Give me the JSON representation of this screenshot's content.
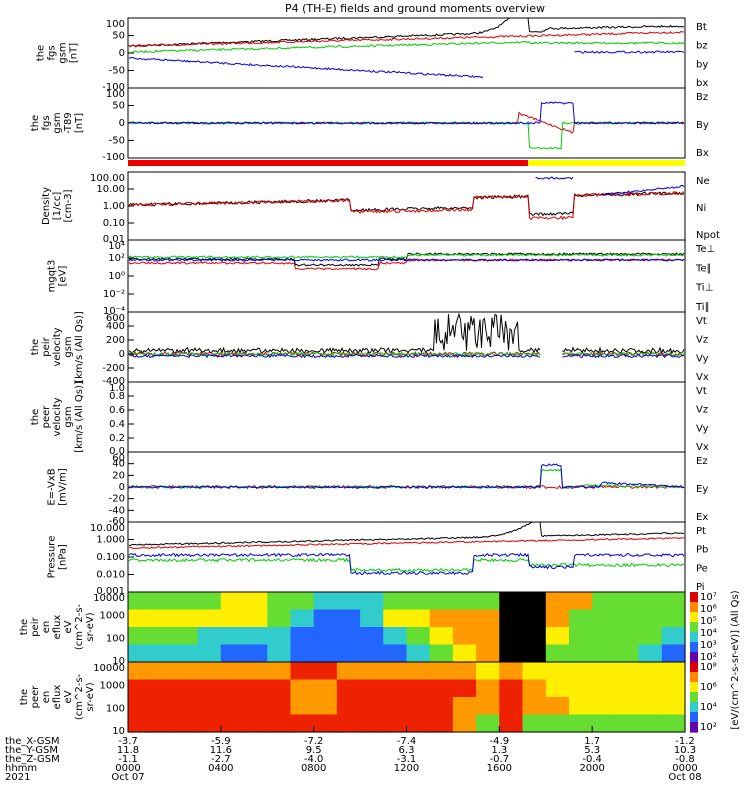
{
  "title": "P4 (TH-E) fields and ground moments overview",
  "colors": {
    "black": "#000000",
    "red": "#dd0000",
    "green": "#00cc00",
    "blue": "#0000dd",
    "yellow": "#ffff00"
  },
  "chart_data": [
    {
      "type": "line",
      "id": "fgs",
      "ylabel": [
        "the",
        "fgs",
        "gsm",
        "[nT]"
      ],
      "ylim": [
        -100,
        100
      ],
      "yticks": [
        "100",
        "50",
        "0",
        "-50",
        "-100"
      ],
      "series": [
        {
          "name": "Bt",
          "color": "black"
        },
        {
          "name": "bz",
          "color": "red"
        },
        {
          "name": "by",
          "color": "green"
        },
        {
          "name": "bx",
          "color": "blue"
        }
      ]
    },
    {
      "type": "line",
      "id": "fgs_dsl",
      "ylabel": [
        "the",
        "fgs",
        "gsm",
        "-T89",
        "[nT]"
      ],
      "ylim": [
        -125,
        125
      ],
      "yticks": [
        "100",
        "50",
        "0",
        "-50",
        "-100"
      ],
      "series": [
        {
          "name": "Bz",
          "color": "red"
        },
        {
          "name": "By",
          "color": "green"
        },
        {
          "name": "Bx",
          "color": "blue"
        }
      ]
    },
    {
      "type": "line",
      "id": "density",
      "ylabel": [
        "Density",
        "[1/cc]",
        "[cm-3]"
      ],
      "yticks": [
        "100.00",
        "10.00",
        "1.00",
        "0.10",
        "0.01"
      ],
      "series": [
        {
          "name": "Ne",
          "color": "red"
        },
        {
          "name": "Ni",
          "color": "black"
        },
        {
          "name": "Npot",
          "color": "blue"
        }
      ]
    },
    {
      "type": "line",
      "id": "temp",
      "ylabel": [
        "mgqt3",
        "[eV]"
      ],
      "yticks": [
        "10⁴",
        "10²",
        "10⁰",
        "10⁻²",
        "10⁻⁴"
      ],
      "series": [
        {
          "name": "Te⊥",
          "color": "red"
        },
        {
          "name": "Te∥",
          "color": "black"
        },
        {
          "name": "Ti⊥",
          "color": "blue"
        },
        {
          "name": "Ti∥",
          "color": "green"
        }
      ]
    },
    {
      "type": "line",
      "id": "peir_vel",
      "ylabel": [
        "the",
        "peir",
        "velocity",
        "gsm",
        "[km/s (All Qs)]"
      ],
      "ylim": [
        -400,
        600
      ],
      "yticks": [
        "600",
        "400",
        "200",
        "0",
        "-200",
        "-400"
      ],
      "series": [
        {
          "name": "Vt",
          "color": "black"
        },
        {
          "name": "Vz",
          "color": "red"
        },
        {
          "name": "Vy",
          "color": "green"
        },
        {
          "name": "Vx",
          "color": "blue"
        }
      ]
    },
    {
      "type": "line",
      "id": "peer_vel",
      "ylabel": [
        "the",
        "peer",
        "velocity",
        "gsm",
        "[km/s (All Qs)]"
      ],
      "ylim": [
        0,
        1
      ],
      "yticks": [
        "1.0",
        "0.8",
        "0.6",
        "0.4",
        "0.2",
        "0.0"
      ],
      "series": [
        {
          "name": "Vt",
          "color": "black"
        },
        {
          "name": "Vz",
          "color": "red"
        },
        {
          "name": "Vy",
          "color": "green"
        },
        {
          "name": "Vx",
          "color": "blue"
        }
      ]
    },
    {
      "type": "line",
      "id": "efield",
      "ylabel": [
        "E=-VxB",
        "[mV/m]"
      ],
      "ylim": [
        -60,
        60
      ],
      "yticks": [
        "60",
        "40",
        "20",
        "0",
        "-20",
        "-40",
        "-60"
      ],
      "series": [
        {
          "name": "Ez",
          "color": "red"
        },
        {
          "name": "Ey",
          "color": "green"
        },
        {
          "name": "Ex",
          "color": "blue"
        }
      ]
    },
    {
      "type": "line",
      "id": "pressure",
      "ylabel": [
        "Pressure",
        "[nPa]"
      ],
      "yticks": [
        "10.000",
        "1.000",
        "0.100",
        "0.010",
        "0.001"
      ],
      "series": [
        {
          "name": "Pt",
          "color": "black"
        },
        {
          "name": "Pb",
          "color": "red"
        },
        {
          "name": "Pe",
          "color": "green"
        },
        {
          "name": "Pi",
          "color": "blue"
        }
      ]
    },
    {
      "type": "heatmap",
      "id": "peir_spec",
      "ylabel": [
        "the",
        "peir",
        "en",
        "eflux",
        "eV",
        "(cm^2-s-",
        "sr-eV)"
      ],
      "yticks": [
        "10000",
        "1000",
        "100",
        "10"
      ],
      "colorbar": {
        "label": "[eV/(cm^2-s-sr-eV)] (All Qs)",
        "ticks": [
          "10⁷",
          "10⁶",
          "10⁵",
          "10⁴",
          "10³",
          "10²"
        ]
      }
    },
    {
      "type": "heatmap",
      "id": "peer_spec",
      "ylabel": [
        "the",
        "peer",
        "en",
        "eflux",
        "eV",
        "(cm^2-s-",
        "sr-eV)"
      ],
      "yticks": [
        "10000",
        "1000",
        "100",
        "10"
      ],
      "colorbar": {
        "label": "[eV/(cm^2-s-sr-eV)] (All Qs)",
        "ticks": [
          "10⁸",
          "10⁶",
          "10⁴",
          "10²"
        ]
      }
    }
  ],
  "xaxis": {
    "rows": [
      {
        "label": "the_X-GSM",
        "values": [
          "-3.7",
          "-5.9",
          "-7.2",
          "-7.4",
          "-4.9",
          "1.7",
          "-1.2"
        ]
      },
      {
        "label": "the_Y-GSM",
        "values": [
          "11.8",
          "11.6",
          "9.5",
          "6.3",
          "1.3",
          "5.3",
          "10.3"
        ]
      },
      {
        "label": "the_Z-GSM",
        "values": [
          "-1.1",
          "-2.7",
          "-4.0",
          "-3.1",
          "-0.7",
          "-0.4",
          "-0.8"
        ]
      },
      {
        "label": "hhmm",
        "values": [
          "0000",
          "0400",
          "0800",
          "1200",
          "1600",
          "2000",
          "0000"
        ]
      },
      {
        "label": "2021",
        "values": [
          "Oct 07",
          "",
          "",
          "",
          "",
          "",
          "Oct 08"
        ]
      }
    ]
  }
}
